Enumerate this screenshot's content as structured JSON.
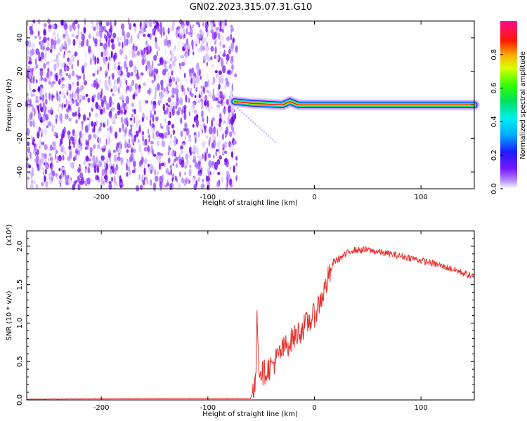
{
  "title": "GN02.2023.315.07.31.G10",
  "chart_data": [
    {
      "type": "heatmap",
      "xlabel": "Height of straight line (km)",
      "ylabel": "Frequency (Hz)",
      "xlim": [
        -270,
        150
      ],
      "ylim": [
        -50,
        50
      ],
      "xticks": [
        -200,
        -100,
        0,
        100
      ],
      "yticks": [
        -40,
        -20,
        0,
        20,
        40
      ],
      "colorbar": {
        "label": "Normalized spectral amplitude",
        "range": [
          0,
          1
        ],
        "ticks": [
          "0.0",
          "0.2",
          "0.4",
          "0.6",
          "0.8"
        ]
      },
      "noise_region_x": [
        -270,
        -73
      ],
      "signal_trace": {
        "x": [
          -75,
          -60,
          -45,
          -30,
          -23,
          -15,
          0,
          30,
          60,
          90,
          120,
          150
        ],
        "frequency": [
          2,
          1,
          0.5,
          0,
          2,
          0,
          0,
          0,
          0,
          0,
          0,
          0
        ]
      }
    },
    {
      "type": "line",
      "xlabel": "Height of straight line (km)",
      "ylabel": "SNR (10 * v/v)",
      "y_multiplier": "(x10⁴)",
      "xlim": [
        -270,
        150
      ],
      "ylim": [
        0,
        2.2
      ],
      "xticks": [
        -200,
        -100,
        0,
        100
      ],
      "yticks": [
        "0.0",
        "0.5",
        "1.0",
        "1.5",
        "2.0"
      ],
      "series": [
        {
          "color": "#e8302c",
          "x": [
            -270,
            -150,
            -60,
            -55,
            -54,
            -52,
            -48,
            -40,
            -30,
            -20,
            -10,
            0,
            10,
            18,
            25,
            35,
            50,
            70,
            90,
            110,
            130,
            150
          ],
          "y": [
            0.01,
            0.02,
            0.02,
            0.2,
            1.3,
            0.4,
            0.35,
            0.45,
            0.65,
            0.8,
            0.95,
            1.1,
            1.45,
            1.8,
            1.85,
            1.95,
            1.95,
            1.9,
            1.85,
            1.78,
            1.7,
            1.6
          ]
        }
      ]
    }
  ]
}
